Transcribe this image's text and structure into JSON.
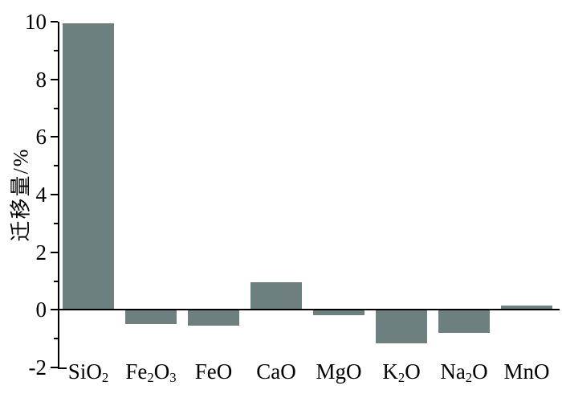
{
  "figure": {
    "background": "#ffffff",
    "bar_color": "#6e7f80",
    "axis_color": "#000000",
    "text_color": "#000000"
  },
  "chart_data": {
    "type": "bar",
    "title": "",
    "xlabel": "",
    "ylabel": "迁移量/%",
    "categories": [
      "SiO₂",
      "Fe₂O₃",
      "FeO",
      "CaO",
      "MgO",
      "K₂O",
      "Na₂O",
      "MnO"
    ],
    "values": [
      9.95,
      -0.5,
      -0.55,
      0.95,
      -0.2,
      -1.15,
      -0.8,
      0.15
    ],
    "ylim": [
      -2,
      10
    ],
    "y_major_ticks": [
      10,
      8,
      6,
      4,
      2,
      0,
      -2
    ],
    "y_tick_labels": [
      "10",
      "8",
      "6",
      "4",
      "2",
      "0",
      "-2"
    ],
    "y_minor_ticks": [
      9,
      7,
      5,
      3,
      1,
      -1
    ],
    "grid": false,
    "legend": false,
    "baseline": 0,
    "bar_color": "#6e7f80"
  }
}
